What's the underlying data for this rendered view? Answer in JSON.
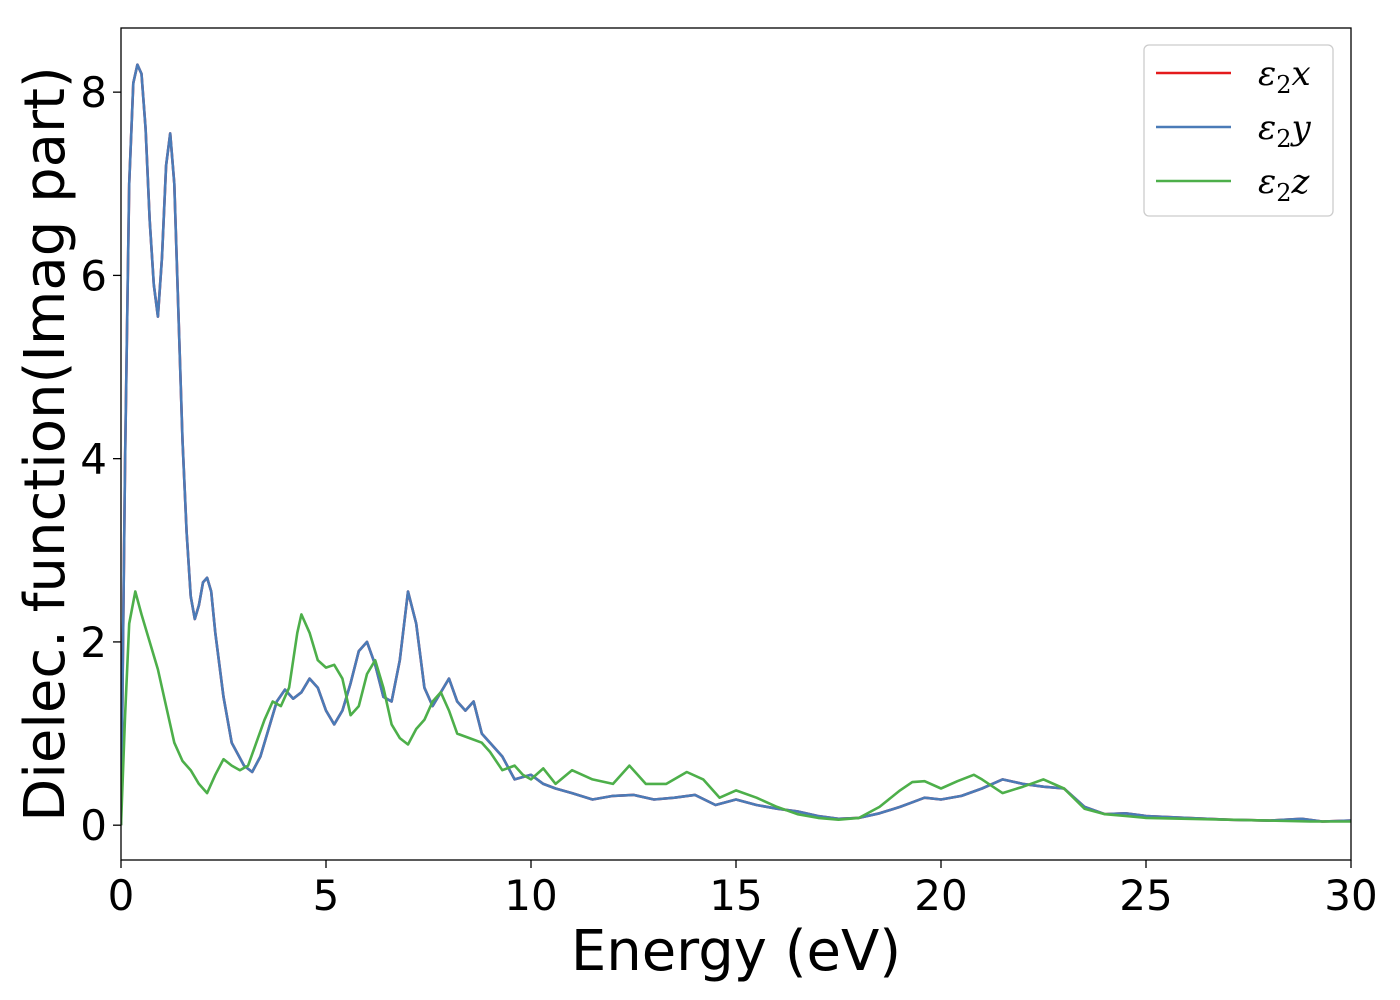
{
  "chart_data": {
    "type": "line",
    "title": "",
    "xlabel": "Energy (eV)",
    "ylabel": "Dielec. function(Imag part)",
    "xlim": [
      0,
      30
    ],
    "ylim": [
      -0.38,
      8.7
    ],
    "xticks": [
      0,
      5,
      10,
      15,
      20,
      25,
      30
    ],
    "yticks": [
      0,
      2,
      4,
      6,
      8
    ],
    "grid": false,
    "legend_position": "top-right",
    "series": [
      {
        "name": "ε2x",
        "legend_base": "ε",
        "legend_sub": "2",
        "legend_var": "x",
        "color": "#e41a1c",
        "x": [
          0,
          0.1,
          0.2,
          0.3,
          0.4,
          0.5,
          0.6,
          0.7,
          0.8,
          0.9,
          1.0,
          1.1,
          1.2,
          1.3,
          1.4,
          1.5,
          1.6,
          1.7,
          1.8,
          1.9,
          2.0,
          2.1,
          2.2,
          2.3,
          2.5,
          2.7,
          3.0,
          3.2,
          3.4,
          3.6,
          3.8,
          4.0,
          4.2,
          4.4,
          4.6,
          4.8,
          5.0,
          5.2,
          5.4,
          5.6,
          5.8,
          6.0,
          6.2,
          6.4,
          6.6,
          6.8,
          7.0,
          7.2,
          7.4,
          7.6,
          7.8,
          8.0,
          8.2,
          8.4,
          8.6,
          8.8,
          9.0,
          9.3,
          9.6,
          10.0,
          10.3,
          10.6,
          11.0,
          11.5,
          12.0,
          12.5,
          13.0,
          13.5,
          14.0,
          14.5,
          15.0,
          15.5,
          16.0,
          16.5,
          17.0,
          17.5,
          18.0,
          18.5,
          19.0,
          19.3,
          19.6,
          20.0,
          20.5,
          21.0,
          21.5,
          22.0,
          22.5,
          23.0,
          23.5,
          24.0,
          24.5,
          25.0,
          26.0,
          27.0,
          28.0,
          28.8,
          29.3,
          30.0
        ],
        "y": [
          0,
          4.0,
          7.0,
          8.1,
          8.3,
          8.2,
          7.6,
          6.6,
          5.9,
          5.55,
          6.2,
          7.2,
          7.55,
          7.0,
          5.6,
          4.2,
          3.2,
          2.5,
          2.25,
          2.4,
          2.65,
          2.7,
          2.55,
          2.1,
          1.4,
          0.9,
          0.65,
          0.58,
          0.75,
          1.05,
          1.35,
          1.48,
          1.38,
          1.45,
          1.6,
          1.5,
          1.25,
          1.1,
          1.25,
          1.55,
          1.9,
          2.0,
          1.75,
          1.4,
          1.35,
          1.8,
          2.55,
          2.2,
          1.5,
          1.3,
          1.45,
          1.6,
          1.35,
          1.25,
          1.35,
          1.0,
          0.9,
          0.75,
          0.5,
          0.55,
          0.45,
          0.4,
          0.35,
          0.28,
          0.32,
          0.33,
          0.28,
          0.3,
          0.33,
          0.22,
          0.28,
          0.22,
          0.18,
          0.15,
          0.1,
          0.07,
          0.08,
          0.13,
          0.2,
          0.25,
          0.3,
          0.28,
          0.32,
          0.4,
          0.5,
          0.45,
          0.42,
          0.4,
          0.2,
          0.12,
          0.13,
          0.1,
          0.08,
          0.06,
          0.05,
          0.07,
          0.04,
          0.05
        ]
      },
      {
        "name": "ε2y",
        "legend_base": "ε",
        "legend_sub": "2",
        "legend_var": "y",
        "color": "#4a7bb7",
        "x": [
          0,
          0.1,
          0.2,
          0.3,
          0.4,
          0.5,
          0.6,
          0.7,
          0.8,
          0.9,
          1.0,
          1.1,
          1.2,
          1.3,
          1.4,
          1.5,
          1.6,
          1.7,
          1.8,
          1.9,
          2.0,
          2.1,
          2.2,
          2.3,
          2.5,
          2.7,
          3.0,
          3.2,
          3.4,
          3.6,
          3.8,
          4.0,
          4.2,
          4.4,
          4.6,
          4.8,
          5.0,
          5.2,
          5.4,
          5.6,
          5.8,
          6.0,
          6.2,
          6.4,
          6.6,
          6.8,
          7.0,
          7.2,
          7.4,
          7.6,
          7.8,
          8.0,
          8.2,
          8.4,
          8.6,
          8.8,
          9.0,
          9.3,
          9.6,
          10.0,
          10.3,
          10.6,
          11.0,
          11.5,
          12.0,
          12.5,
          13.0,
          13.5,
          14.0,
          14.5,
          15.0,
          15.5,
          16.0,
          16.5,
          17.0,
          17.5,
          18.0,
          18.5,
          19.0,
          19.3,
          19.6,
          20.0,
          20.5,
          21.0,
          21.5,
          22.0,
          22.5,
          23.0,
          23.5,
          24.0,
          24.5,
          25.0,
          26.0,
          27.0,
          28.0,
          28.8,
          29.3,
          30.0
        ],
        "y": [
          0,
          4.0,
          7.0,
          8.1,
          8.3,
          8.2,
          7.6,
          6.6,
          5.9,
          5.55,
          6.2,
          7.2,
          7.55,
          7.0,
          5.6,
          4.2,
          3.2,
          2.5,
          2.25,
          2.4,
          2.65,
          2.7,
          2.55,
          2.1,
          1.4,
          0.9,
          0.65,
          0.58,
          0.75,
          1.05,
          1.35,
          1.48,
          1.38,
          1.45,
          1.6,
          1.5,
          1.25,
          1.1,
          1.25,
          1.55,
          1.9,
          2.0,
          1.75,
          1.4,
          1.35,
          1.8,
          2.55,
          2.2,
          1.5,
          1.3,
          1.45,
          1.6,
          1.35,
          1.25,
          1.35,
          1.0,
          0.9,
          0.75,
          0.5,
          0.55,
          0.45,
          0.4,
          0.35,
          0.28,
          0.32,
          0.33,
          0.28,
          0.3,
          0.33,
          0.22,
          0.28,
          0.22,
          0.18,
          0.15,
          0.1,
          0.07,
          0.08,
          0.13,
          0.2,
          0.25,
          0.3,
          0.28,
          0.32,
          0.4,
          0.5,
          0.45,
          0.42,
          0.4,
          0.2,
          0.12,
          0.13,
          0.1,
          0.08,
          0.06,
          0.05,
          0.07,
          0.04,
          0.05
        ]
      },
      {
        "name": "ε2z",
        "legend_base": "ε",
        "legend_sub": "2",
        "legend_var": "z",
        "color": "#4daf4a",
        "x": [
          0,
          0.1,
          0.2,
          0.35,
          0.5,
          0.7,
          0.9,
          1.1,
          1.3,
          1.5,
          1.7,
          1.9,
          2.1,
          2.3,
          2.5,
          2.7,
          2.9,
          3.1,
          3.3,
          3.5,
          3.7,
          3.9,
          4.1,
          4.3,
          4.4,
          4.6,
          4.8,
          5.0,
          5.2,
          5.4,
          5.6,
          5.8,
          6.0,
          6.2,
          6.4,
          6.6,
          6.8,
          7.0,
          7.2,
          7.4,
          7.6,
          7.8,
          8.0,
          8.2,
          8.5,
          8.8,
          9.0,
          9.3,
          9.6,
          9.8,
          10.0,
          10.3,
          10.6,
          11.0,
          11.5,
          12.0,
          12.4,
          12.8,
          13.3,
          13.8,
          14.2,
          14.6,
          15.0,
          15.5,
          16.0,
          16.5,
          17.0,
          17.5,
          18.0,
          18.5,
          19.0,
          19.3,
          19.6,
          20.0,
          20.4,
          20.8,
          21.0,
          21.5,
          22.0,
          22.5,
          23.0,
          23.5,
          24.0,
          24.5,
          25.0,
          26.0,
          27.0,
          28.0,
          29.0,
          30.0
        ],
        "y": [
          0,
          1.2,
          2.2,
          2.55,
          2.3,
          2.0,
          1.7,
          1.3,
          0.9,
          0.7,
          0.6,
          0.45,
          0.35,
          0.55,
          0.72,
          0.65,
          0.6,
          0.65,
          0.9,
          1.15,
          1.35,
          1.3,
          1.5,
          2.1,
          2.3,
          2.1,
          1.8,
          1.72,
          1.75,
          1.6,
          1.2,
          1.3,
          1.65,
          1.8,
          1.5,
          1.1,
          0.95,
          0.88,
          1.05,
          1.15,
          1.35,
          1.45,
          1.25,
          1.0,
          0.95,
          0.9,
          0.8,
          0.6,
          0.65,
          0.55,
          0.5,
          0.62,
          0.45,
          0.6,
          0.5,
          0.45,
          0.65,
          0.45,
          0.45,
          0.58,
          0.5,
          0.3,
          0.38,
          0.3,
          0.2,
          0.12,
          0.08,
          0.06,
          0.08,
          0.2,
          0.38,
          0.47,
          0.48,
          0.4,
          0.48,
          0.55,
          0.5,
          0.35,
          0.42,
          0.5,
          0.4,
          0.18,
          0.12,
          0.1,
          0.08,
          0.07,
          0.06,
          0.05,
          0.04,
          0.04
        ]
      }
    ]
  }
}
